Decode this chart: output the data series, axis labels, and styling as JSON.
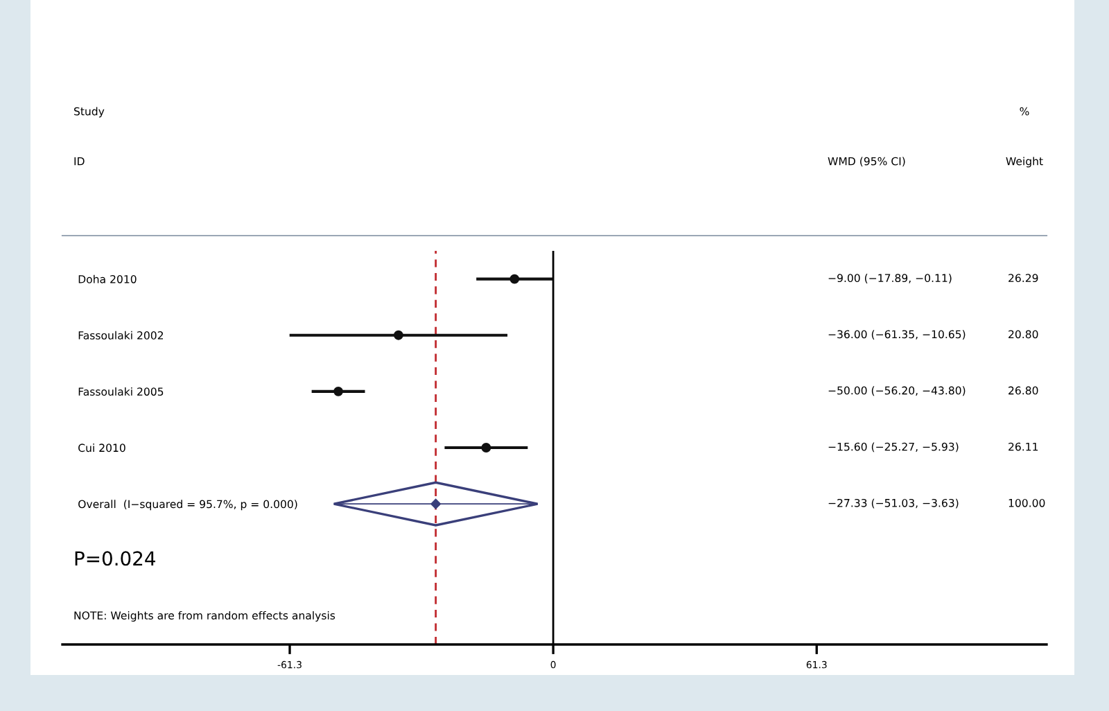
{
  "chart_data": {
    "type": "scatter",
    "orientation": "horizontal",
    "categories": [
      "Doha 2010",
      "Fassoulaki 2002",
      "Fassoulaki 2005",
      "Cui 2010",
      "Overall  (I−squared = 95.7%, p = 0.000)",
      null,
      null
    ],
    "series": [
      {
        "color": "#111111",
        "marker": "circle",
        "values": [
          -9.0,
          -36.0,
          -50.0,
          -15.6,
          null,
          null,
          null
        ],
        "errors": [
          [
            -17.89,
            -0.11
          ],
          [
            -61.35,
            -10.65
          ],
          [
            -56.2,
            -43.8
          ],
          [
            -25.27,
            -5.93
          ],
          null,
          null,
          null
        ]
      },
      {
        "color": "#3a3f7a",
        "marker": "diamond",
        "values": [
          null,
          null,
          null,
          null,
          -27.33,
          null,
          null
        ],
        "errors": [
          null,
          null,
          null,
          null,
          [
            -51.03,
            -3.63
          ],
          null,
          null
        ]
      }
    ],
    "xlim": [
      -114.2,
      114.8
    ],
    "xticks": [
      -61.3,
      0,
      61.3
    ],
    "ref_lines": [
      {
        "axis": "x",
        "value": 0,
        "color": "#000000",
        "line_style": "solid"
      },
      {
        "axis": "x",
        "value": -27.33,
        "color": "#c0282d",
        "line_style": "dashed"
      }
    ],
    "annotations": [
      "Study",
      "ID",
      "WMD (95% CI)",
      "%",
      "Weight",
      "P=0.024",
      "NOTE: Weights are from random effects analysis",
      "−9.00 (−17.89, −0.11)",
      "−36.00 (−61.35, −10.65)",
      "−50.00 (−56.20, −43.80)",
      "−15.60 (−25.27, −5.93)",
      "−27.33 (−51.03, −3.63)",
      "26.29",
      "20.80",
      "26.80",
      "26.11",
      "100.00"
    ],
    "tick_labels": "x",
    "grid": false
  }
}
